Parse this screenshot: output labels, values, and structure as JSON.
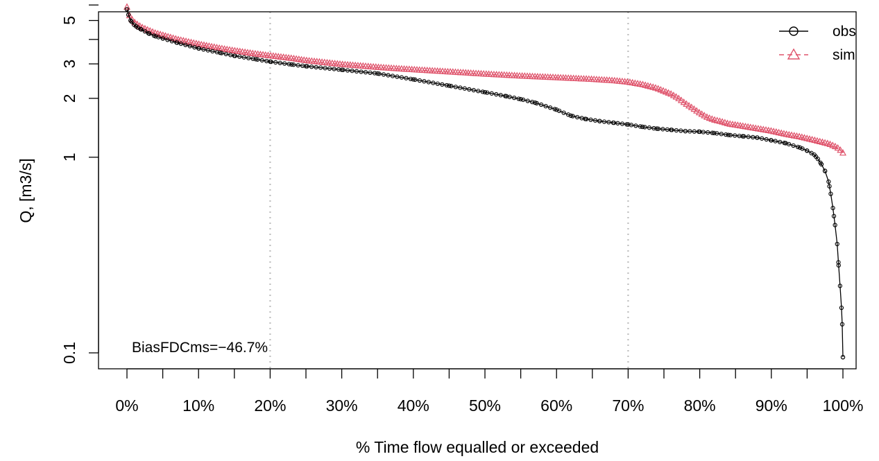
{
  "chart_data": {
    "type": "line",
    "title": "",
    "xlabel": "% Time flow equalled or exceeded",
    "ylabel": "Q, [m3/s]",
    "xlim": [
      0,
      100
    ],
    "ylim": [
      0.1,
      6.0
    ],
    "y_scale": "log",
    "grid": "vertical dotted at 20% and 70%",
    "legend_position": "top-right",
    "x_ticks": [
      0,
      10,
      20,
      30,
      40,
      50,
      60,
      70,
      80,
      90,
      100
    ],
    "x_tick_labels": [
      "0%",
      "10%",
      "20%",
      "30%",
      "40%",
      "50%",
      "60%",
      "70%",
      "80%",
      "90%",
      "100%"
    ],
    "y_ticks": [
      0.1,
      1,
      2,
      3,
      5
    ],
    "y_tick_labels": [
      "0.1",
      "1",
      "2",
      "3",
      "5"
    ],
    "annotation": "BiasFDCms=−46.7%",
    "series": [
      {
        "name": "obs",
        "color": "#000000",
        "marker": "circle",
        "line": "solid",
        "x": [
          0,
          0.2,
          0.5,
          1,
          1.5,
          2,
          3,
          4,
          5,
          7,
          10,
          13,
          15,
          18,
          20,
          23,
          25,
          30,
          35,
          40,
          45,
          50,
          53,
          55,
          57,
          60,
          62,
          64,
          66,
          68,
          70,
          72,
          74,
          76,
          78,
          80,
          82,
          84,
          86,
          88,
          90,
          92,
          94,
          95,
          96,
          96.5,
          97,
          97.5,
          98,
          98.3,
          98.6,
          98.9,
          99.2,
          99.4,
          99.6,
          99.8,
          99.9,
          100
        ],
        "y": [
          5.7,
          5.35,
          5.0,
          4.75,
          4.6,
          4.5,
          4.3,
          4.15,
          4.05,
          3.85,
          3.6,
          3.42,
          3.3,
          3.17,
          3.08,
          2.98,
          2.92,
          2.8,
          2.68,
          2.5,
          2.32,
          2.15,
          2.05,
          1.98,
          1.9,
          1.75,
          1.63,
          1.57,
          1.53,
          1.5,
          1.47,
          1.43,
          1.4,
          1.38,
          1.36,
          1.35,
          1.33,
          1.3,
          1.28,
          1.26,
          1.22,
          1.18,
          1.12,
          1.08,
          1.03,
          0.98,
          0.92,
          0.85,
          0.75,
          0.65,
          0.55,
          0.45,
          0.36,
          0.28,
          0.22,
          0.17,
          0.14,
          0.095
        ]
      },
      {
        "name": "sim",
        "color": "#DF536B",
        "marker": "triangle",
        "line": "dashed",
        "x": [
          0,
          0.2,
          0.5,
          1,
          1.5,
          2,
          3,
          4,
          5,
          7,
          10,
          13,
          15,
          18,
          20,
          23,
          25,
          30,
          35,
          40,
          45,
          50,
          55,
          60,
          63,
          65,
          68,
          70,
          72,
          74,
          76,
          77,
          78,
          79,
          80,
          81,
          82,
          83,
          84,
          86,
          88,
          90,
          92,
          94,
          96,
          98,
          99,
          99.5,
          100
        ],
        "y": [
          5.85,
          5.45,
          5.15,
          4.9,
          4.75,
          4.62,
          4.45,
          4.3,
          4.2,
          4.0,
          3.78,
          3.6,
          3.5,
          3.37,
          3.3,
          3.2,
          3.12,
          2.98,
          2.88,
          2.8,
          2.73,
          2.66,
          2.6,
          2.55,
          2.52,
          2.5,
          2.46,
          2.42,
          2.35,
          2.25,
          2.1,
          2.0,
          1.88,
          1.78,
          1.68,
          1.6,
          1.55,
          1.52,
          1.48,
          1.44,
          1.4,
          1.36,
          1.31,
          1.27,
          1.22,
          1.17,
          1.13,
          1.1,
          1.05
        ]
      }
    ]
  }
}
